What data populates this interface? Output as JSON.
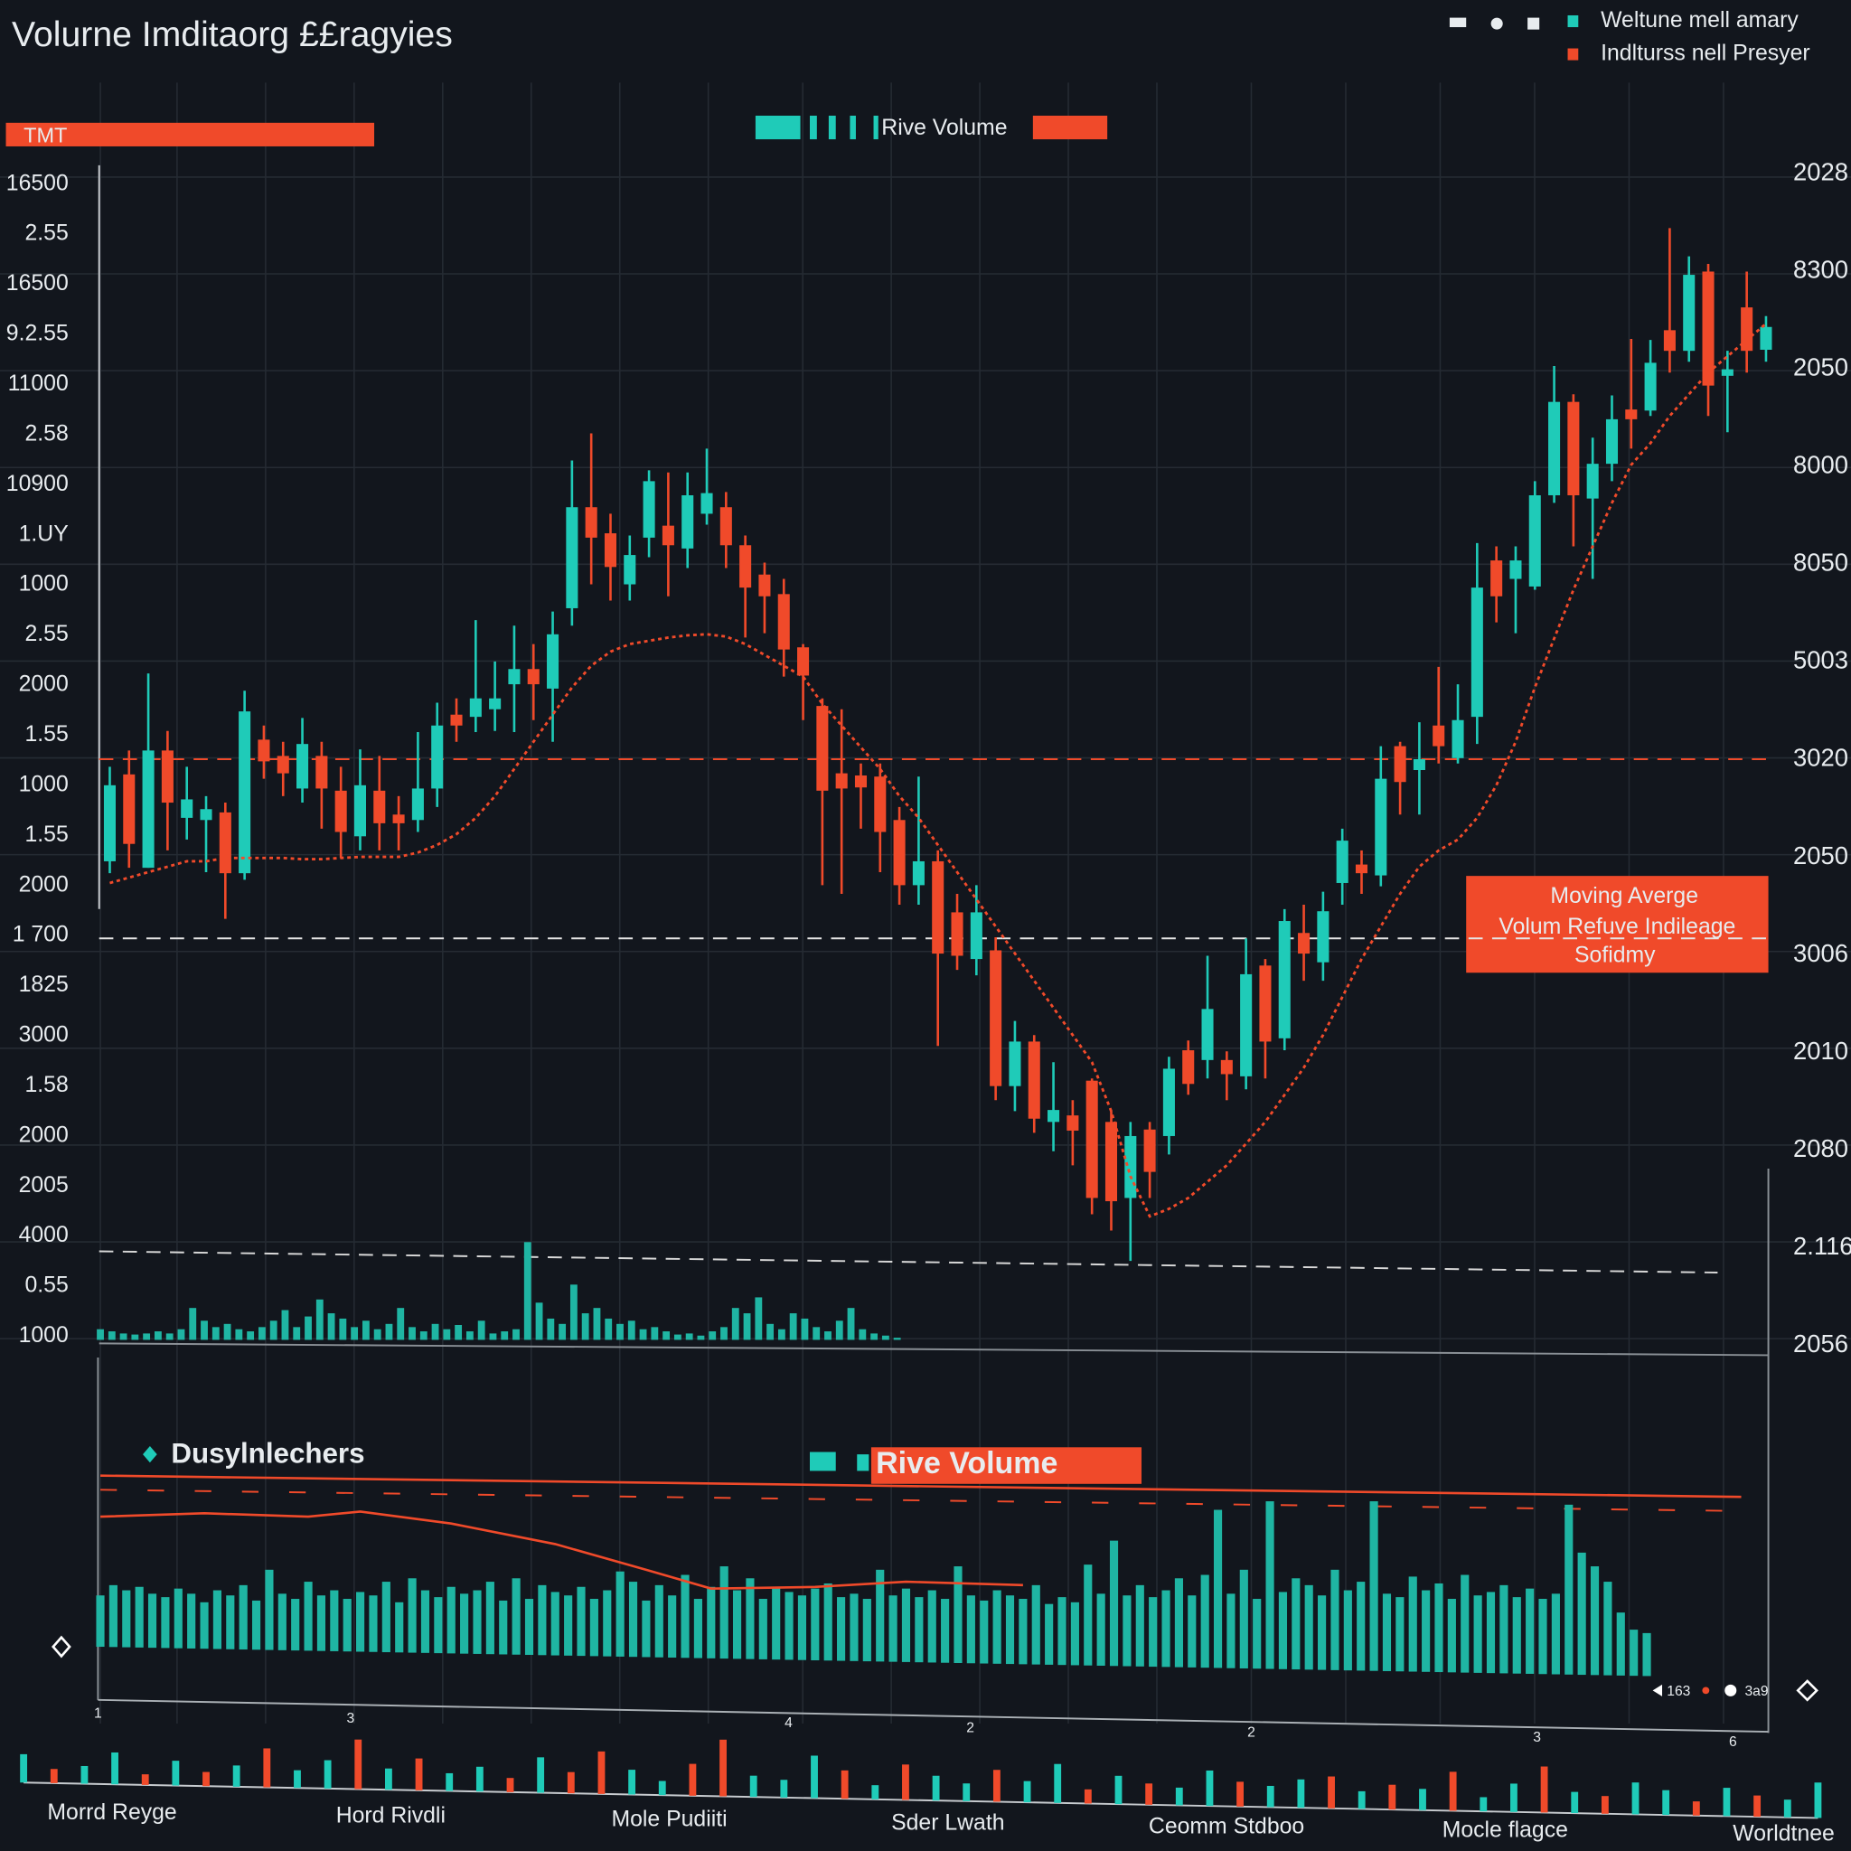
{
  "chart_data": {
    "type": "candlestick",
    "title": "Volurne Imditaorg ££ragyies",
    "legend": [
      {
        "name": "Weltune mell amary",
        "color": "#1fcbb8"
      },
      {
        "name": "Indlturss nell Presyer",
        "color": "#f04a2a"
      }
    ],
    "up_color": "#1fcbb8",
    "down_color": "#f04a2a",
    "banner_left": "TMT",
    "banner_center": "Rive Volume",
    "left_labels": [
      "16500",
      "2.55",
      "16500",
      "9.2.55",
      "11000",
      "2.58",
      "10900",
      "1.UY",
      "1000",
      "2.55",
      "2000",
      "1.55",
      "1000",
      "1.55",
      "2000",
      "1 700",
      "1825",
      "3000",
      "1.58",
      "2000",
      "2005",
      "4000",
      "0.55",
      "1000"
    ],
    "right_labels": [
      "2028",
      "8300",
      "2050",
      "8000",
      "8050",
      "5003",
      "3020",
      "2050",
      "3006",
      "2010",
      "2080",
      "2.116",
      "2056"
    ],
    "ylim": [
      0,
      100
    ],
    "grid": true,
    "candles": [
      {
        "open": 37,
        "high": 45.7,
        "low": 35.9,
        "close": 44
      },
      {
        "open": 45,
        "high": 47.2,
        "low": 36.4,
        "close": 38.6
      },
      {
        "open": 36.4,
        "high": 54.3,
        "low": 36.4,
        "close": 47.2
      },
      {
        "open": 47.2,
        "high": 49,
        "low": 38,
        "close": 42.4
      },
      {
        "open": 41,
        "high": 45.7,
        "low": 39,
        "close": 42.7
      },
      {
        "open": 40.8,
        "high": 43,
        "low": 36,
        "close": 41.8
      },
      {
        "open": 41.5,
        "high": 42.4,
        "low": 31.7,
        "close": 35.9
      },
      {
        "open": 35.9,
        "high": 52.7,
        "low": 35.3,
        "close": 50.8
      },
      {
        "open": 48.2,
        "high": 49.5,
        "low": 44.6,
        "close": 46.2
      },
      {
        "open": 46.7,
        "high": 48,
        "low": 43,
        "close": 45.1
      },
      {
        "open": 43.7,
        "high": 50.2,
        "low": 42.4,
        "close": 47.8
      },
      {
        "open": 46.7,
        "high": 48,
        "low": 40,
        "close": 43.7
      },
      {
        "open": 43.5,
        "high": 45.7,
        "low": 37.3,
        "close": 39.7
      },
      {
        "open": 39.3,
        "high": 47.3,
        "low": 38,
        "close": 44
      },
      {
        "open": 43.5,
        "high": 46.7,
        "low": 38,
        "close": 40.5
      },
      {
        "open": 41.3,
        "high": 43,
        "low": 38,
        "close": 40.5
      },
      {
        "open": 40.8,
        "high": 48.9,
        "low": 39.7,
        "close": 43.7
      },
      {
        "open": 43.7,
        "high": 51.6,
        "low": 42,
        "close": 49.5
      },
      {
        "open": 50.5,
        "high": 52,
        "low": 48,
        "close": 49.5
      },
      {
        "open": 50.3,
        "high": 59.2,
        "low": 48.9,
        "close": 52
      },
      {
        "open": 51,
        "high": 55.4,
        "low": 49,
        "close": 52
      },
      {
        "open": 53.3,
        "high": 58.7,
        "low": 48.9,
        "close": 54.7
      },
      {
        "open": 54.7,
        "high": 57,
        "low": 50,
        "close": 53.3
      },
      {
        "open": 52.9,
        "high": 60,
        "low": 48,
        "close": 57.9
      },
      {
        "open": 60.3,
        "high": 73.9,
        "low": 58.7,
        "close": 69.6
      },
      {
        "open": 69.6,
        "high": 76.4,
        "low": 62.5,
        "close": 66.8
      },
      {
        "open": 67.2,
        "high": 69,
        "low": 61,
        "close": 64.1
      },
      {
        "open": 62.5,
        "high": 67,
        "low": 61,
        "close": 65.2
      },
      {
        "open": 66.8,
        "high": 73,
        "low": 65,
        "close": 72
      },
      {
        "open": 67.9,
        "high": 72.8,
        "low": 61.4,
        "close": 66.1
      },
      {
        "open": 65.8,
        "high": 72.8,
        "low": 64,
        "close": 70.7
      },
      {
        "open": 69,
        "high": 75,
        "low": 68,
        "close": 70.9
      },
      {
        "open": 69.6,
        "high": 71,
        "low": 64,
        "close": 66.1
      },
      {
        "open": 66.1,
        "high": 67,
        "low": 57.6,
        "close": 62.2
      },
      {
        "open": 63.4,
        "high": 64.5,
        "low": 58,
        "close": 61.4
      },
      {
        "open": 61.6,
        "high": 63,
        "low": 54,
        "close": 56.5
      },
      {
        "open": 56.7,
        "high": 57,
        "low": 50,
        "close": 54.1
      },
      {
        "open": 51.3,
        "high": 52,
        "low": 34.8,
        "close": 43.5
      },
      {
        "open": 45.1,
        "high": 51,
        "low": 34,
        "close": 43.7
      },
      {
        "open": 44.9,
        "high": 46,
        "low": 40,
        "close": 43.8
      },
      {
        "open": 44.8,
        "high": 46,
        "low": 36,
        "close": 39.7
      },
      {
        "open": 40.8,
        "high": 42,
        "low": 33,
        "close": 34.8
      },
      {
        "open": 34.8,
        "high": 44.8,
        "low": 33,
        "close": 37
      },
      {
        "open": 37,
        "high": 38,
        "low": 20,
        "close": 28.5
      },
      {
        "open": 32.3,
        "high": 34,
        "low": 27,
        "close": 28.3
      },
      {
        "open": 28,
        "high": 34.8,
        "low": 26.5,
        "close": 32.3
      },
      {
        "open": 28.8,
        "high": 30,
        "low": 15,
        "close": 16.3
      },
      {
        "open": 16.3,
        "high": 22.3,
        "low": 14,
        "close": 20.4
      },
      {
        "open": 20.4,
        "high": 21,
        "low": 12,
        "close": 13.3
      },
      {
        "open": 13,
        "high": 18.5,
        "low": 10.3,
        "close": 14.1
      },
      {
        "open": 13.6,
        "high": 15,
        "low": 9,
        "close": 12.2
      },
      {
        "open": 16.8,
        "high": 17,
        "low": 4.5,
        "close": 6
      },
      {
        "open": 13,
        "high": 14,
        "low": 3,
        "close": 5.7
      },
      {
        "open": 6,
        "high": 13,
        "low": 0.2,
        "close": 11.7
      },
      {
        "open": 12.3,
        "high": 13,
        "low": 6,
        "close": 8.4
      },
      {
        "open": 11.7,
        "high": 19,
        "low": 10,
        "close": 17.9
      },
      {
        "open": 19.6,
        "high": 20.5,
        "low": 15.5,
        "close": 16.5
      },
      {
        "open": 18.7,
        "high": 28.3,
        "low": 17,
        "close": 23.4
      },
      {
        "open": 18.7,
        "high": 19.5,
        "low": 15,
        "close": 17.4
      },
      {
        "open": 17.2,
        "high": 29.9,
        "low": 16,
        "close": 26.6
      },
      {
        "open": 27.4,
        "high": 28,
        "low": 17,
        "close": 20.4
      },
      {
        "open": 20.7,
        "high": 32.6,
        "low": 19.6,
        "close": 31.5
      },
      {
        "open": 30.4,
        "high": 33,
        "low": 26,
        "close": 28.5
      },
      {
        "open": 27.7,
        "high": 34.2,
        "low": 26,
        "close": 32.4
      },
      {
        "open": 35,
        "high": 40,
        "low": 33,
        "close": 38.9
      },
      {
        "open": 36.7,
        "high": 38,
        "low": 34,
        "close": 35.9
      },
      {
        "open": 35.7,
        "high": 47.6,
        "low": 34.7,
        "close": 44.6
      },
      {
        "open": 47.6,
        "high": 48,
        "low": 41.3,
        "close": 44.3
      },
      {
        "open": 45.4,
        "high": 49.8,
        "low": 41.3,
        "close": 46.4
      },
      {
        "open": 49.5,
        "high": 54.9,
        "low": 46,
        "close": 47.6
      },
      {
        "open": 46.5,
        "high": 53.3,
        "low": 46,
        "close": 50
      },
      {
        "open": 50.3,
        "high": 66.3,
        "low": 47.8,
        "close": 62.2
      },
      {
        "open": 64.7,
        "high": 66,
        "low": 59,
        "close": 61.4
      },
      {
        "open": 63,
        "high": 66,
        "low": 58,
        "close": 64.7
      },
      {
        "open": 62.3,
        "high": 72,
        "low": 62,
        "close": 70.7
      },
      {
        "open": 70.7,
        "high": 82.6,
        "low": 70,
        "close": 79.3
      },
      {
        "open": 79.3,
        "high": 80,
        "low": 66,
        "close": 70.7
      },
      {
        "open": 70.4,
        "high": 76,
        "low": 63,
        "close": 73.6
      },
      {
        "open": 73.6,
        "high": 79.9,
        "low": 72,
        "close": 77.7
      },
      {
        "open": 78.6,
        "high": 85.1,
        "low": 75,
        "close": 77.7
      },
      {
        "open": 78.5,
        "high": 85,
        "low": 78,
        "close": 82.9
      },
      {
        "open": 85.9,
        "high": 95.3,
        "low": 82,
        "close": 84
      },
      {
        "open": 84,
        "high": 92.7,
        "low": 83,
        "close": 91
      },
      {
        "open": 91.3,
        "high": 92,
        "low": 78,
        "close": 80.8
      },
      {
        "open": 81.7,
        "high": 84,
        "low": 76.5,
        "close": 82.3
      },
      {
        "open": 88,
        "high": 91.3,
        "low": 82,
        "close": 84
      },
      {
        "open": 84.1,
        "high": 87.2,
        "low": 83,
        "close": 86.2
      }
    ],
    "moving_average": {
      "color": "#f04a2a",
      "values": [
        35,
        35.5,
        36,
        36.5,
        37,
        37,
        37.3,
        37.3,
        37.3,
        37.3,
        37.2,
        37.2,
        37.3,
        37.4,
        37.4,
        37.4,
        37.8,
        38.5,
        39.5,
        41,
        43,
        45.5,
        48,
        50.5,
        53,
        55,
        56.3,
        57,
        57.3,
        57.6,
        57.8,
        57.9,
        57.7,
        57,
        56,
        55,
        54,
        51.5,
        49.5,
        47.5,
        45.5,
        43,
        41,
        38.5,
        36,
        33.5,
        31,
        28.5,
        26,
        23.5,
        21,
        18.5,
        14,
        8,
        4.3,
        5,
        6,
        7.5,
        9,
        11,
        13,
        15.5,
        18,
        21,
        24.5,
        28,
        31,
        34,
        36.5,
        38,
        39,
        41,
        44,
        48,
        53,
        57.5,
        62,
        66,
        70,
        73.5,
        75.5,
        78,
        80,
        82,
        83.5,
        85,
        86.5
      ]
    },
    "reference_lines": [
      {
        "value": 46.4,
        "color": "#f04a2a"
      },
      {
        "value": 29.9,
        "color": "#e6e6e6"
      }
    ],
    "annotation": [
      "Moving Averge",
      "Volum Refuve Indileage",
      "Sofidmy"
    ],
    "volume": {
      "color": "#1fb5a3",
      "values": [
        10,
        8,
        6,
        5,
        6,
        8,
        6,
        10,
        30,
        18,
        12,
        15,
        10,
        8,
        12,
        18,
        28,
        12,
        22,
        38,
        25,
        20,
        12,
        18,
        10,
        15,
        30,
        12,
        8,
        15,
        10,
        14,
        8,
        18,
        6,
        8,
        10,
        92,
        35,
        20,
        15,
        52,
        25,
        30,
        20,
        15,
        18,
        10,
        12,
        8,
        5,
        6,
        4,
        8,
        12,
        30,
        25,
        40,
        15,
        10,
        25,
        20,
        12,
        8,
        18,
        30,
        10,
        6,
        4,
        2
      ]
    },
    "panel": {
      "legend": [
        "Dusylnlechers",
        "Rive Volume"
      ],
      "ylim": [
        0,
        100
      ],
      "bar_color": "#1fb5a3",
      "bars": [
        30,
        36,
        33,
        35,
        31,
        29,
        34,
        31,
        26,
        33,
        30,
        36,
        27,
        45,
        31,
        28,
        38,
        30,
        33,
        28,
        32,
        30,
        38,
        26,
        40,
        33,
        29,
        35,
        31,
        33,
        38,
        27,
        40,
        28,
        36,
        32,
        30,
        35,
        28,
        33,
        44,
        38,
        27,
        36,
        30,
        42,
        28,
        35,
        47,
        33,
        40,
        28,
        35,
        32,
        30,
        34,
        37,
        29,
        31,
        28,
        45,
        30,
        34,
        29,
        33,
        28,
        47,
        30,
        27,
        33,
        30,
        28,
        36,
        25,
        29,
        26,
        48,
        31,
        62,
        30,
        36,
        29,
        33,
        40,
        30,
        42,
        80,
        31,
        45,
        28,
        85,
        32,
        40,
        36,
        30,
        45,
        33,
        38,
        85,
        31,
        29,
        41,
        33,
        37,
        28,
        42,
        30,
        32,
        36,
        29,
        34,
        28,
        31,
        83,
        55,
        47,
        38,
        20,
        10,
        8
      ],
      "line": {
        "color": "#f04a2a",
        "x": [
          0,
          8,
          16,
          20,
          27,
          35,
          42,
          47,
          55,
          62,
          71
        ],
        "values": [
          76,
          78,
          76,
          79,
          72,
          60,
          45,
          34,
          35,
          38,
          36
        ]
      },
      "axis_labels": [
        "1",
        "3",
        "4",
        "2",
        "2",
        "3",
        "6"
      ],
      "corner_labels": [
        "163",
        "3a9"
      ]
    },
    "strip": {
      "values": [
        40,
        20,
        25,
        45,
        15,
        35,
        20,
        30,
        55,
        25,
        40,
        70,
        30,
        45,
        25,
        35,
        20,
        50,
        30,
        60,
        35,
        20,
        45,
        80,
        30,
        25,
        60,
        40,
        20,
        50,
        35,
        25,
        45,
        30,
        55,
        20,
        40,
        30,
        25,
        50,
        35,
        30,
        40,
        45,
        25,
        35,
        30,
        55,
        20,
        40,
        65,
        30,
        25,
        45,
        35,
        20,
        40,
        30,
        25,
        50
      ],
      "colors": [
        "#1fcbb8",
        "#f04a2a",
        "#1fcbb8",
        "#1fcbb8",
        "#f04a2a",
        "#1fcbb8",
        "#f04a2a",
        "#1fcbb8",
        "#f04a2a",
        "#1fcbb8",
        "#1fcbb8",
        "#f04a2a",
        "#1fcbb8",
        "#f04a2a",
        "#1fcbb8",
        "#1fcbb8",
        "#f04a2a",
        "#1fcbb8",
        "#f04a2a",
        "#f04a2a",
        "#1fcbb8",
        "#1fcbb8",
        "#f04a2a",
        "#f04a2a",
        "#1fcbb8",
        "#1fcbb8",
        "#1fcbb8",
        "#f04a2a",
        "#1fcbb8",
        "#f04a2a",
        "#1fcbb8",
        "#1fcbb8",
        "#f04a2a",
        "#1fcbb8",
        "#1fcbb8",
        "#f04a2a",
        "#1fcbb8",
        "#f04a2a",
        "#1fcbb8",
        "#1fcbb8",
        "#f04a2a",
        "#1fcbb8",
        "#1fcbb8",
        "#f04a2a",
        "#1fcbb8",
        "#f04a2a",
        "#1fcbb8",
        "#f04a2a",
        "#1fcbb8",
        "#1fcbb8",
        "#f04a2a",
        "#1fcbb8",
        "#f04a2a",
        "#1fcbb8",
        "#1fcbb8",
        "#f04a2a",
        "#1fcbb8",
        "#f04a2a",
        "#1fcbb8",
        "#1fcbb8"
      ],
      "labels": [
        "Morrd Reyge",
        "Hord Rivdli",
        "Mole Pudiiti",
        "Sder Lwath",
        "Ceomm Stdboo",
        "Mocle flagce",
        "Worldtnee"
      ]
    }
  }
}
